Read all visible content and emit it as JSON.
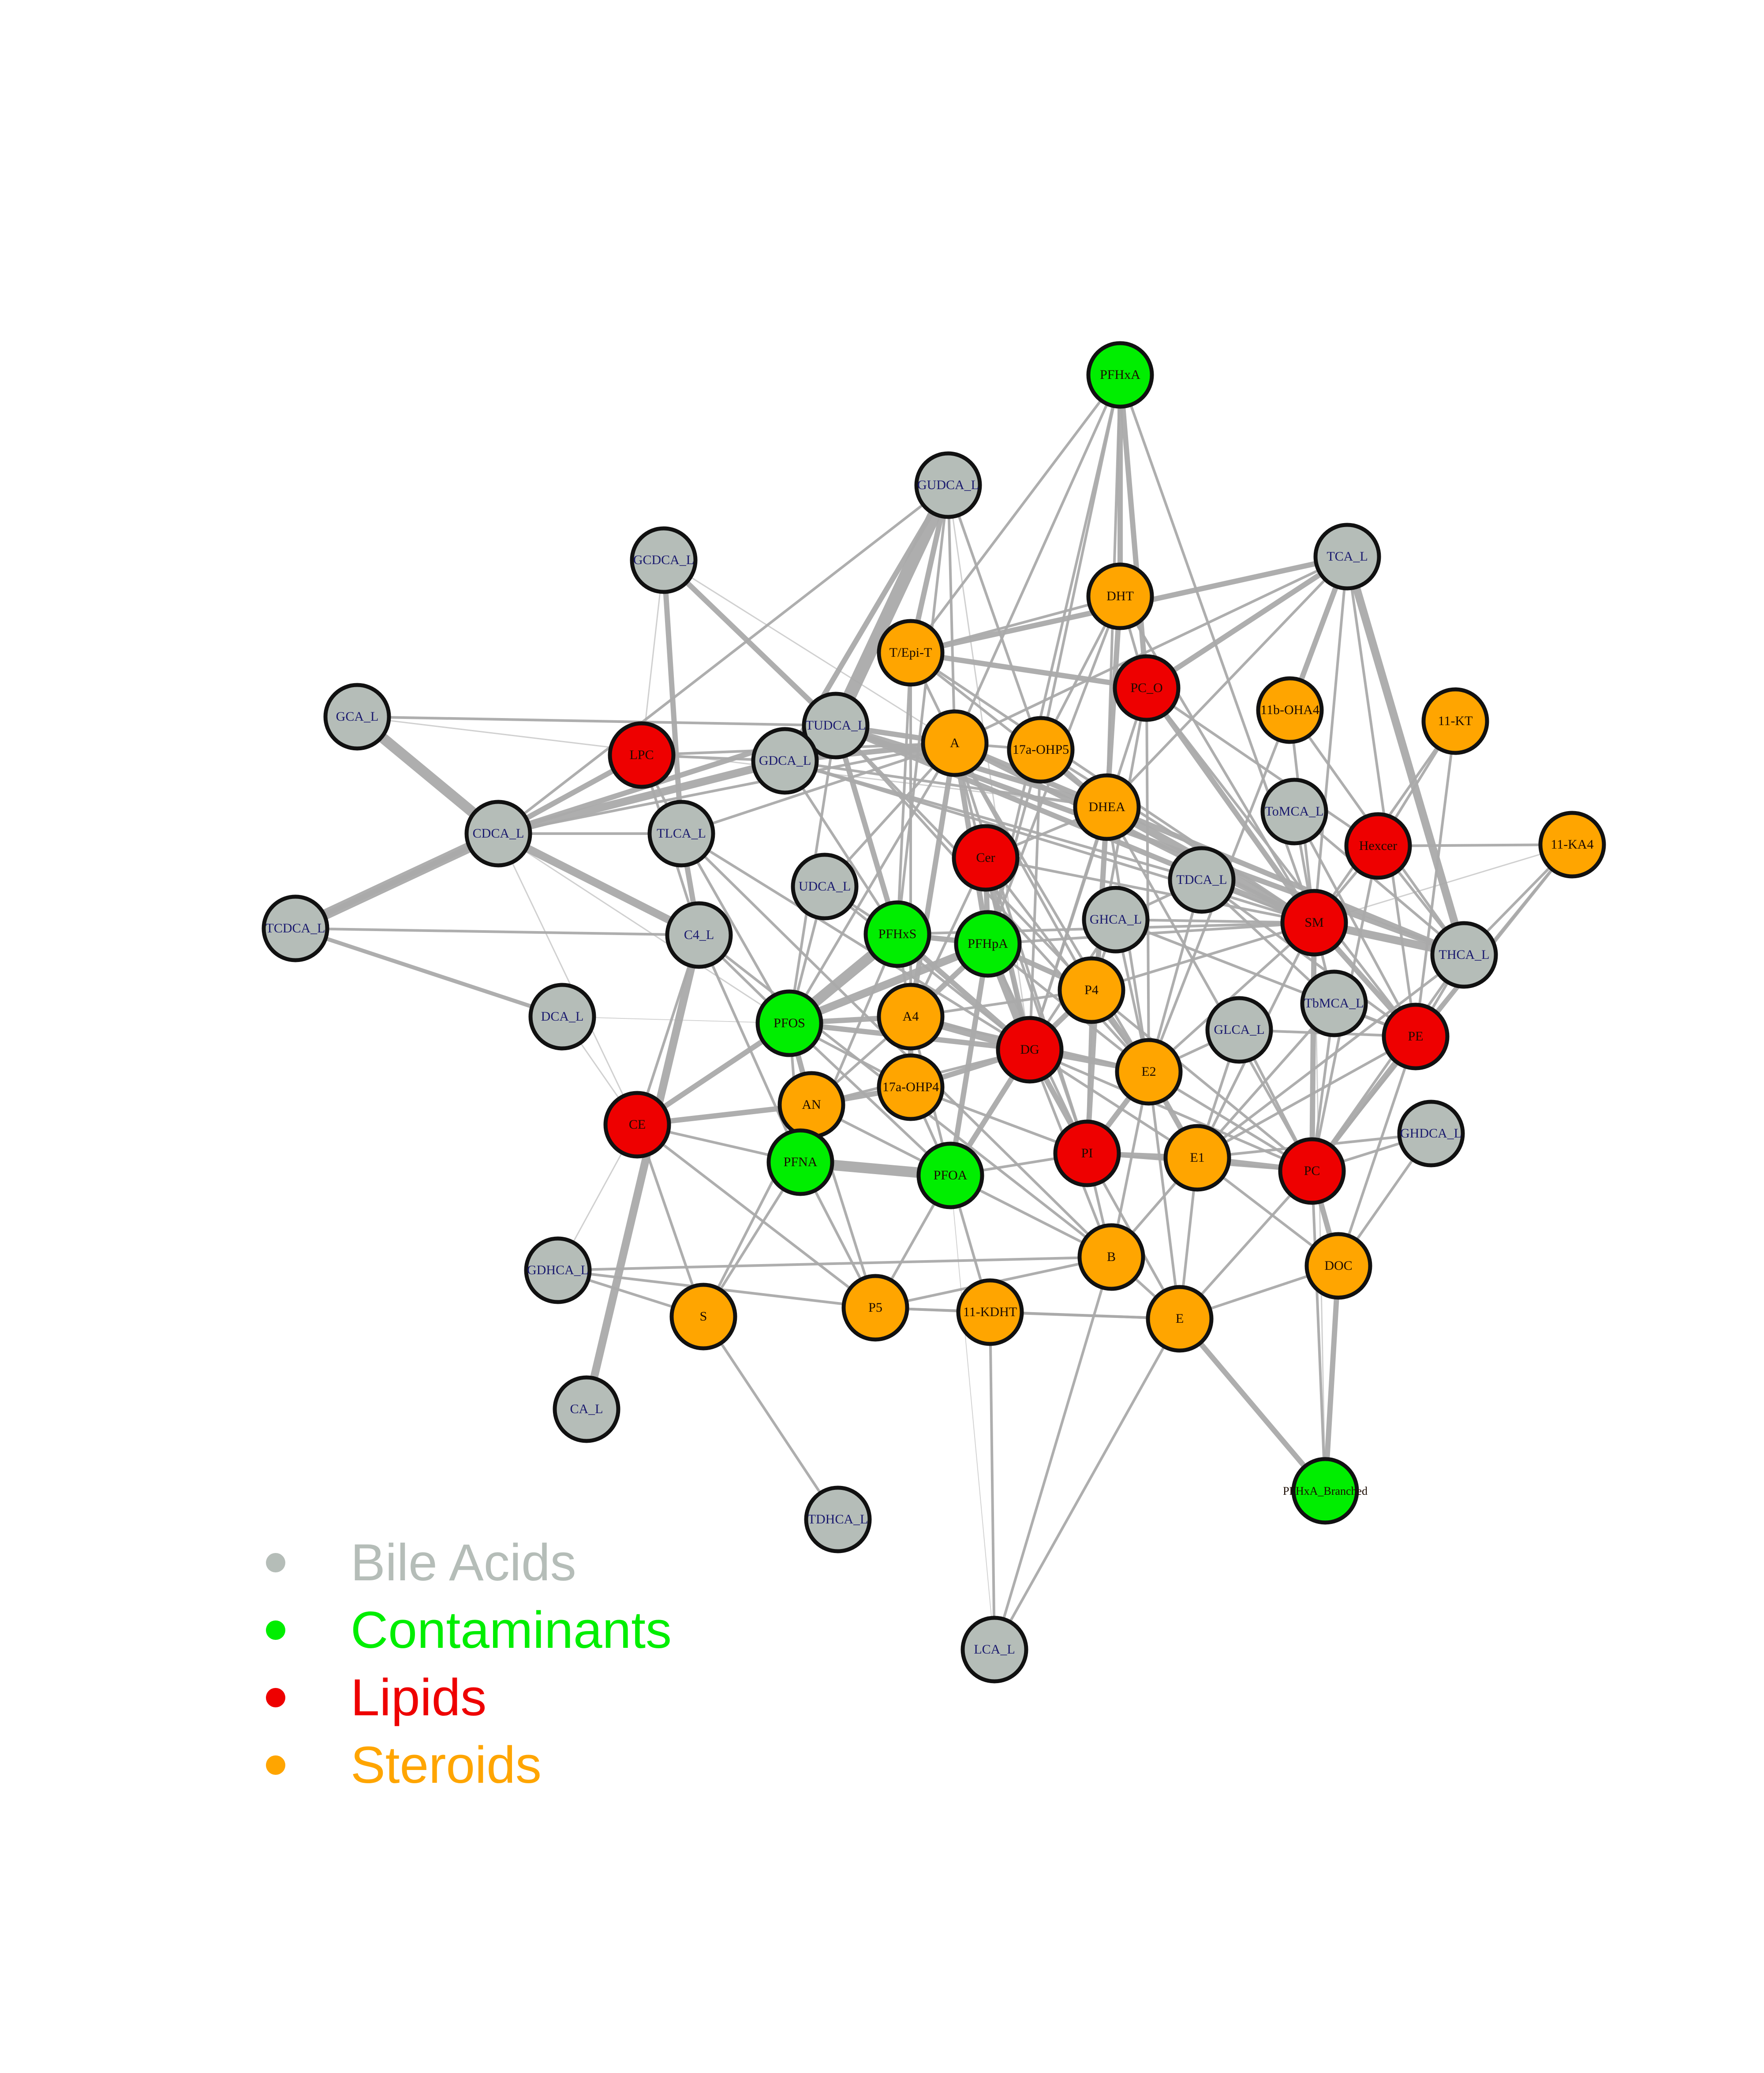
{
  "nodes": [
    {
      "id": "PFHxA",
      "label": "PFHxA",
      "group": "contaminant"
    },
    {
      "id": "GUDCA_L",
      "label": "GUDCA_L",
      "group": "bile"
    },
    {
      "id": "GCDCA_L",
      "label": "GCDCA_L",
      "group": "bile"
    },
    {
      "id": "TCA_L",
      "label": "TCA_L",
      "group": "bile"
    },
    {
      "id": "DHT",
      "label": "DHT",
      "group": "steroid"
    },
    {
      "id": "T/Epi-T",
      "label": "T/Epi-T",
      "group": "steroid"
    },
    {
      "id": "PC_O",
      "label": "PC_O",
      "group": "lipid"
    },
    {
      "id": "11b-OHA4",
      "label": "11b-OHA4",
      "group": "steroid"
    },
    {
      "id": "11-KT",
      "label": "11-KT",
      "group": "steroid"
    },
    {
      "id": "GCA_L",
      "label": "GCA_L",
      "group": "bile"
    },
    {
      "id": "TUDCA_L",
      "label": "TUDCA_L",
      "group": "bile"
    },
    {
      "id": "A",
      "label": "A",
      "group": "steroid"
    },
    {
      "id": "17a-OHP5",
      "label": "17a-OHP5",
      "group": "steroid"
    },
    {
      "id": "LPC",
      "label": "LPC",
      "group": "lipid"
    },
    {
      "id": "GDCA_L",
      "label": "GDCA_L",
      "group": "bile"
    },
    {
      "id": "DHEA",
      "label": "DHEA",
      "group": "steroid"
    },
    {
      "id": "ToMCA_L",
      "label": "ToMCA_L",
      "group": "bile"
    },
    {
      "id": "CDCA_L",
      "label": "CDCA_L",
      "group": "bile"
    },
    {
      "id": "TLCA_L",
      "label": "TLCA_L",
      "group": "bile"
    },
    {
      "id": "Hexcer",
      "label": "Hexcer",
      "group": "lipid"
    },
    {
      "id": "11-KA4",
      "label": "11-KA4",
      "group": "steroid"
    },
    {
      "id": "Cer",
      "label": "Cer",
      "group": "lipid"
    },
    {
      "id": "UDCA_L",
      "label": "UDCA_L",
      "group": "bile"
    },
    {
      "id": "TDCA_L",
      "label": "TDCA_L",
      "group": "bile"
    },
    {
      "id": "TCDCA_L",
      "label": "TCDCA_L",
      "group": "bile"
    },
    {
      "id": "C4_L",
      "label": "C4_L",
      "group": "bile"
    },
    {
      "id": "PFHxS",
      "label": "PFHxS",
      "group": "contaminant"
    },
    {
      "id": "PFHpA",
      "label": "PFHpA",
      "group": "contaminant"
    },
    {
      "id": "GHCA_L",
      "label": "GHCA_L",
      "group": "bile"
    },
    {
      "id": "SM",
      "label": "SM",
      "group": "lipid"
    },
    {
      "id": "THCA_L",
      "label": "THCA_L",
      "group": "bile"
    },
    {
      "id": "P4",
      "label": "P4",
      "group": "steroid"
    },
    {
      "id": "TbMCA_L",
      "label": "TbMCA_L",
      "group": "bile"
    },
    {
      "id": "DCA_L",
      "label": "DCA_L",
      "group": "bile"
    },
    {
      "id": "PFOS",
      "label": "PFOS",
      "group": "contaminant"
    },
    {
      "id": "A4",
      "label": "A4",
      "group": "steroid"
    },
    {
      "id": "DG",
      "label": "DG",
      "group": "lipid"
    },
    {
      "id": "GLCA_L",
      "label": "GLCA_L",
      "group": "bile"
    },
    {
      "id": "PE",
      "label": "PE",
      "group": "lipid"
    },
    {
      "id": "E2",
      "label": "E2",
      "group": "steroid"
    },
    {
      "id": "17a-OHP4",
      "label": "17a-OHP4",
      "group": "steroid"
    },
    {
      "id": "AN",
      "label": "AN",
      "group": "steroid"
    },
    {
      "id": "CE",
      "label": "CE",
      "group": "lipid"
    },
    {
      "id": "GHDCA_L",
      "label": "GHDCA_L",
      "group": "bile"
    },
    {
      "id": "PFNA",
      "label": "PFNA",
      "group": "contaminant"
    },
    {
      "id": "PI",
      "label": "PI",
      "group": "lipid"
    },
    {
      "id": "E1",
      "label": "E1",
      "group": "steroid"
    },
    {
      "id": "PC",
      "label": "PC",
      "group": "lipid"
    },
    {
      "id": "PFOA",
      "label": "PFOA",
      "group": "contaminant"
    },
    {
      "id": "B",
      "label": "B",
      "group": "steroid"
    },
    {
      "id": "DOC",
      "label": "DOC",
      "group": "steroid"
    },
    {
      "id": "GDHCA_L",
      "label": "GDHCA_L",
      "group": "bile"
    },
    {
      "id": "S",
      "label": "S",
      "group": "steroid"
    },
    {
      "id": "P5",
      "label": "P5",
      "group": "steroid"
    },
    {
      "id": "11-KDHT",
      "label": "11-KDHT",
      "group": "steroid"
    },
    {
      "id": "E",
      "label": "E",
      "group": "steroid"
    },
    {
      "id": "CA_L",
      "label": "CA_L",
      "group": "bile"
    },
    {
      "id": "PFHxA_Branched",
      "label": "PFHxA_Branched",
      "group": "contaminant"
    },
    {
      "id": "TDHCA_L",
      "label": "TDHCA_L",
      "group": "bile"
    },
    {
      "id": "LCA_L",
      "label": "LCA_L",
      "group": "bile"
    }
  ],
  "edges": [
    [
      "GUDCA_L",
      "TUDCA_L",
      5
    ],
    [
      "GUDCA_L",
      "T/Epi-T",
      2
    ],
    [
      "GUDCA_L",
      "A",
      1
    ],
    [
      "GUDCA_L",
      "17a-OHP5",
      1
    ],
    [
      "GUDCA_L",
      "GDCA_L",
      2
    ],
    [
      "GUDCA_L",
      "PFHxS",
      1
    ],
    [
      "GUDCA_L",
      "DG",
      0.5
    ],
    [
      "GUDCA_L",
      "CDCA_L",
      1
    ],
    [
      "PFHxA",
      "DHT",
      2
    ],
    [
      "PFHxA",
      "17a-OHP5",
      1
    ],
    [
      "PFHxA",
      "PC_O",
      2
    ],
    [
      "PFHxA",
      "SM",
      1
    ],
    [
      "PFHxA",
      "A",
      1
    ],
    [
      "PFHxA",
      "T/Epi-T",
      1
    ],
    [
      "PFHxA",
      "PFHpA",
      1
    ],
    [
      "PFHxA",
      "DHEA",
      1
    ],
    [
      "GCDCA_L",
      "LPC",
      0.5
    ],
    [
      "GCDCA_L",
      "TLCA_L",
      2
    ],
    [
      "GCDCA_L",
      "A",
      0.5
    ],
    [
      "GCDCA_L",
      "TUDCA_L",
      2
    ],
    [
      "TCA_L",
      "T/Epi-T",
      2
    ],
    [
      "TCA_L",
      "THCA_L",
      3
    ],
    [
      "TCA_L",
      "11b-OHA4",
      2
    ],
    [
      "TCA_L",
      "PC_O",
      2
    ],
    [
      "TCA_L",
      "SM",
      1
    ],
    [
      "TCA_L",
      "DHEA",
      1
    ],
    [
      "TCA_L",
      "A",
      1
    ],
    [
      "TCA_L",
      "PE",
      1
    ],
    [
      "DHT",
      "PC_O",
      1
    ],
    [
      "DHT",
      "DHEA",
      2
    ],
    [
      "DHT",
      "17a-OHP5",
      1
    ],
    [
      "DHT",
      "T/Epi-T",
      1
    ],
    [
      "DHT",
      "PFHpA",
      1
    ],
    [
      "DHT",
      "SM",
      1
    ],
    [
      "T/Epi-T",
      "PC_O",
      2
    ],
    [
      "T/Epi-T",
      "A",
      1
    ],
    [
      "T/Epi-T",
      "PFHxS",
      1
    ],
    [
      "T/Epi-T",
      "A4",
      1
    ],
    [
      "T/Epi-T",
      "SM",
      1
    ],
    [
      "T/Epi-T",
      "DHEA",
      1
    ],
    [
      "PC_O",
      "SM",
      2
    ],
    [
      "PC_O",
      "PE",
      1
    ],
    [
      "PC_O",
      "E2",
      1
    ],
    [
      "PC_O",
      "P4",
      1
    ],
    [
      "PC_O",
      "Hexcer",
      1
    ],
    [
      "PC_O",
      "DG",
      1
    ],
    [
      "11b-OHA4",
      "SM",
      1
    ],
    [
      "11b-OHA4",
      "E2",
      1
    ],
    [
      "11b-OHA4",
      "THCA_L",
      1
    ],
    [
      "11-KT",
      "Hexcer",
      1
    ],
    [
      "11-KT",
      "SM",
      1
    ],
    [
      "11-KT",
      "PE",
      1
    ],
    [
      "GCA_L",
      "CDCA_L",
      4
    ],
    [
      "GCA_L",
      "TUDCA_L",
      1
    ],
    [
      "GCA_L",
      "DHEA",
      0.5
    ],
    [
      "TUDCA_L",
      "A",
      2
    ],
    [
      "TUDCA_L",
      "PFHxS",
      2
    ],
    [
      "TUDCA_L",
      "DHEA",
      2
    ],
    [
      "TUDCA_L",
      "SM",
      2
    ],
    [
      "TUDCA_L",
      "THCA_L",
      2
    ],
    [
      "TUDCA_L",
      "CDCA_L",
      2
    ],
    [
      "TUDCA_L",
      "E2",
      1
    ],
    [
      "TUDCA_L",
      "P4",
      1
    ],
    [
      "TUDCA_L",
      "PFOS",
      1
    ],
    [
      "A",
      "DHEA",
      2
    ],
    [
      "A",
      "17a-OHP5",
      1
    ],
    [
      "A",
      "PFHpA",
      2
    ],
    [
      "A",
      "A4",
      2
    ],
    [
      "A",
      "SM",
      2
    ],
    [
      "A",
      "E2",
      1
    ],
    [
      "A",
      "P4",
      1
    ],
    [
      "A",
      "DG",
      1
    ],
    [
      "A",
      "PFOS",
      1
    ],
    [
      "A",
      "PI",
      1
    ],
    [
      "17a-OHP5",
      "DHEA",
      2
    ],
    [
      "17a-OHP5",
      "PFHpA",
      1
    ],
    [
      "17a-OHP5",
      "DG",
      1
    ],
    [
      "17a-OHP5",
      "SM",
      1
    ],
    [
      "LPC",
      "CDCA_L",
      2
    ],
    [
      "LPC",
      "GDCA_L",
      1
    ],
    [
      "LPC",
      "A",
      1
    ],
    [
      "LPC",
      "TLCA_L",
      1
    ],
    [
      "LPC",
      "C4_L",
      1
    ],
    [
      "GDCA_L",
      "CDCA_L",
      3
    ],
    [
      "GDCA_L",
      "A",
      2
    ],
    [
      "GDCA_L",
      "DHEA",
      1
    ],
    [
      "GDCA_L",
      "SM",
      1
    ],
    [
      "GDCA_L",
      "PFHxS",
      1
    ],
    [
      "GDCA_L",
      "TDCA_L",
      1
    ],
    [
      "DHEA",
      "SM",
      3
    ],
    [
      "DHEA",
      "PI",
      2
    ],
    [
      "DHEA",
      "Cer",
      1
    ],
    [
      "DHEA",
      "DG",
      1
    ],
    [
      "DHEA",
      "E2",
      1
    ],
    [
      "DHEA",
      "PC",
      1
    ],
    [
      "DHEA",
      "THCA_L",
      2
    ],
    [
      "ToMCA_L",
      "SM",
      1
    ],
    [
      "ToMCA_L",
      "THCA_L",
      1
    ],
    [
      "ToMCA_L",
      "PE",
      1
    ],
    [
      "CDCA_L",
      "TCDCA_L",
      4
    ],
    [
      "CDCA_L",
      "C4_L",
      3
    ],
    [
      "CDCA_L",
      "TLCA_L",
      1
    ],
    [
      "CDCA_L",
      "A",
      1
    ],
    [
      "CDCA_L",
      "CE",
      0.5
    ],
    [
      "CDCA_L",
      "PFOS",
      0.5
    ],
    [
      "TLCA_L",
      "C4_L",
      2
    ],
    [
      "TLCA_L",
      "PFOS",
      1
    ],
    [
      "TLCA_L",
      "A",
      1
    ],
    [
      "TLCA_L",
      "DG",
      1
    ],
    [
      "TLCA_L",
      "B",
      1
    ],
    [
      "Hexcer",
      "11-KA4",
      1
    ],
    [
      "Hexcer",
      "SM",
      1
    ],
    [
      "Hexcer",
      "THCA_L",
      1
    ],
    [
      "Hexcer",
      "PC",
      1
    ],
    [
      "11-KA4",
      "THCA_L",
      1
    ],
    [
      "11-KA4",
      "PE",
      1
    ],
    [
      "11-KA4",
      "SM",
      0.5
    ],
    [
      "11-KA4",
      "PC",
      1
    ],
    [
      "Cer",
      "DG",
      2
    ],
    [
      "Cer",
      "PFHpA",
      2
    ],
    [
      "Cer",
      "SM",
      1
    ],
    [
      "Cer",
      "E2",
      1
    ],
    [
      "Cer",
      "PI",
      1
    ],
    [
      "Cer",
      "A4",
      1
    ],
    [
      "UDCA_L",
      "PFHxS",
      1
    ],
    [
      "UDCA_L",
      "A",
      1
    ],
    [
      "UDCA_L",
      "PFOS",
      1
    ],
    [
      "UDCA_L",
      "DG",
      1
    ],
    [
      "TDCA_L",
      "SM",
      1
    ],
    [
      "TDCA_L",
      "GHCA_L",
      1
    ],
    [
      "TDCA_L",
      "E2",
      1
    ],
    [
      "TDCA_L",
      "PE",
      1
    ],
    [
      "TDCA_L",
      "TbMCA_L",
      1
    ],
    [
      "TCDCA_L",
      "C4_L",
      1
    ],
    [
      "TCDCA_L",
      "DCA_L",
      1.5
    ],
    [
      "TCDCA_L",
      "CDCA_L",
      2
    ],
    [
      "C4_L",
      "CA_L",
      3
    ],
    [
      "C4_L",
      "PFOS",
      1
    ],
    [
      "C4_L",
      "PFNA",
      1
    ],
    [
      "C4_L",
      "B",
      1
    ],
    [
      "C4_L",
      "CE",
      1
    ],
    [
      "PFHxS",
      "PFHpA",
      2
    ],
    [
      "PFHxS",
      "PFOS",
      4
    ],
    [
      "PFHxS",
      "DG",
      2
    ],
    [
      "PFHxS",
      "A4",
      1
    ],
    [
      "PFHxS",
      "PFNA",
      1
    ],
    [
      "PFHxS",
      "SM",
      1
    ],
    [
      "PFHpA",
      "DG",
      3
    ],
    [
      "PFHpA",
      "PFOS",
      3
    ],
    [
      "PFHpA",
      "A4",
      2
    ],
    [
      "PFHpA",
      "PFOA",
      2
    ],
    [
      "PFHpA",
      "E2",
      1
    ],
    [
      "PFHpA",
      "SM",
      1
    ],
    [
      "PFHpA",
      "P4",
      2
    ],
    [
      "PFHpA",
      "PI",
      1
    ],
    [
      "GHCA_L",
      "SM",
      1
    ],
    [
      "GHCA_L",
      "P4",
      1
    ],
    [
      "GHCA_L",
      "E2",
      1
    ],
    [
      "GHCA_L",
      "DG",
      1
    ],
    [
      "GHCA_L",
      "PE",
      1
    ],
    [
      "SM",
      "THCA_L",
      3
    ],
    [
      "SM",
      "PE",
      2
    ],
    [
      "SM",
      "PC",
      2
    ],
    [
      "SM",
      "E2",
      1
    ],
    [
      "SM",
      "P4",
      1
    ],
    [
      "SM",
      "TbMCA_L",
      1
    ],
    [
      "SM",
      "E1",
      1
    ],
    [
      "THCA_L",
      "PE",
      1
    ],
    [
      "THCA_L",
      "PC",
      1
    ],
    [
      "THCA_L",
      "E1",
      1
    ],
    [
      "P4",
      "DG",
      2
    ],
    [
      "P4",
      "E2",
      2
    ],
    [
      "P4",
      "A4",
      1
    ],
    [
      "P4",
      "PI",
      1
    ],
    [
      "P4",
      "PC",
      1
    ],
    [
      "TbMCA_L",
      "PE",
      1
    ],
    [
      "TbMCA_L",
      "PC",
      1
    ],
    [
      "TbMCA_L",
      "E1",
      1
    ],
    [
      "DCA_L",
      "CE",
      0.5
    ],
    [
      "DCA_L",
      "PFOS",
      0.3
    ],
    [
      "PFOS",
      "A4",
      2
    ],
    [
      "PFOS",
      "AN",
      2
    ],
    [
      "PFOS",
      "PFNA",
      1
    ],
    [
      "PFOS",
      "DG",
      2
    ],
    [
      "PFOS",
      "CE",
      2
    ],
    [
      "PFOS",
      "17a-OHP4",
      1
    ],
    [
      "PFOS",
      "PFOA",
      1
    ],
    [
      "A4",
      "DG",
      3
    ],
    [
      "A4",
      "17a-OHP4",
      2
    ],
    [
      "A4",
      "AN",
      1
    ],
    [
      "A4",
      "PFOA",
      1
    ],
    [
      "A4",
      "E2",
      1
    ],
    [
      "DG",
      "E2",
      2
    ],
    [
      "DG",
      "PI",
      2
    ],
    [
      "DG",
      "17a-OHP4",
      2
    ],
    [
      "DG",
      "E1",
      1
    ],
    [
      "DG",
      "PFOA",
      2
    ],
    [
      "DG",
      "B",
      1
    ],
    [
      "DG",
      "PC",
      1
    ],
    [
      "DG",
      "AN",
      1
    ],
    [
      "GLCA_L",
      "E2",
      1
    ],
    [
      "GLCA_L",
      "PC",
      1
    ],
    [
      "GLCA_L",
      "PE",
      1
    ],
    [
      "GLCA_L",
      "E1",
      1
    ],
    [
      "PE",
      "PC",
      2
    ],
    [
      "PE",
      "DOC",
      1
    ],
    [
      "PE",
      "E1",
      1
    ],
    [
      "E2",
      "PI",
      2
    ],
    [
      "E2",
      "E1",
      2
    ],
    [
      "E2",
      "B",
      1
    ],
    [
      "E2",
      "PC",
      1
    ],
    [
      "E2",
      "E",
      1
    ],
    [
      "17a-OHP4",
      "AN",
      2
    ],
    [
      "17a-OHP4",
      "PFOA",
      1
    ],
    [
      "17a-OHP4",
      "PI",
      1
    ],
    [
      "AN",
      "CE",
      2
    ],
    [
      "AN",
      "PFNA",
      1
    ],
    [
      "AN",
      "PFOA",
      1
    ],
    [
      "AN",
      "P5",
      1
    ],
    [
      "CE",
      "PFNA",
      1
    ],
    [
      "CE",
      "S",
      1
    ],
    [
      "CE",
      "P5",
      1
    ],
    [
      "CE",
      "GDHCA_L",
      0.5
    ],
    [
      "GHDCA_L",
      "PC",
      1
    ],
    [
      "GHDCA_L",
      "DOC",
      1
    ],
    [
      "GHDCA_L",
      "E1",
      1
    ],
    [
      "PFNA",
      "PFOA",
      4
    ],
    [
      "PFNA",
      "S",
      1
    ],
    [
      "PFNA",
      "P5",
      1
    ],
    [
      "PI",
      "E1",
      2
    ],
    [
      "PI",
      "PC",
      1
    ],
    [
      "PI",
      "B",
      1
    ],
    [
      "PI",
      "E",
      1
    ],
    [
      "PI",
      "PFOA",
      1
    ],
    [
      "E1",
      "PC",
      2
    ],
    [
      "E1",
      "DOC",
      1
    ],
    [
      "E1",
      "E",
      1
    ],
    [
      "E1",
      "B",
      1
    ],
    [
      "PC",
      "DOC",
      2
    ],
    [
      "PC",
      "E",
      1
    ],
    [
      "PFOA",
      "P5",
      1
    ],
    [
      "PFOA",
      "11-KDHT",
      1
    ],
    [
      "PFOA",
      "B",
      1
    ],
    [
      "B",
      "P5",
      1
    ],
    [
      "B",
      "E",
      1
    ],
    [
      "B",
      "LCA_L",
      1
    ],
    [
      "DOC",
      "PFHxA_Branched",
      2
    ],
    [
      "DOC",
      "E",
      1
    ],
    [
      "GDHCA_L",
      "S",
      1
    ],
    [
      "GDHCA_L",
      "P5",
      1
    ],
    [
      "GDHCA_L",
      "B",
      1
    ],
    [
      "S",
      "TDHCA_L",
      1
    ],
    [
      "S",
      "AN",
      1
    ],
    [
      "P5",
      "11-KDHT",
      1
    ],
    [
      "P5",
      "E",
      1
    ],
    [
      "11-KDHT",
      "E",
      1
    ],
    [
      "11-KDHT",
      "LCA_L",
      1
    ],
    [
      "E",
      "PFHxA_Branched",
      2
    ],
    [
      "E",
      "LCA_L",
      1
    ],
    [
      "LCA_L",
      "PFOA",
      0.3
    ],
    [
      "PFHxA_Branched",
      "PC",
      1
    ],
    [
      "PFHxA_Branched",
      "SM",
      0.5
    ]
  ],
  "legend": [
    {
      "label": "Bile Acids",
      "color": "#B5BDB8"
    },
    {
      "label": "Contaminants",
      "color": "#00EE00"
    },
    {
      "label": "Lipids",
      "color": "#EE0000"
    },
    {
      "label": "Steroids",
      "color": "#FFA500"
    }
  ],
  "colors": {
    "bile": "#B5BDB8",
    "contaminant": "#00EE00",
    "lipid": "#EE0000",
    "steroid": "#FFA500",
    "edge": "#AAAAAA",
    "label": "#1A1A6E"
  }
}
